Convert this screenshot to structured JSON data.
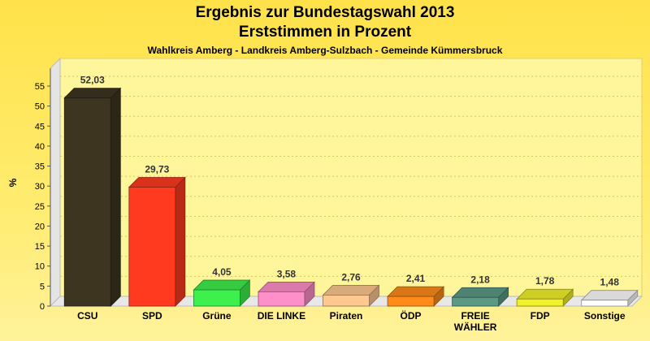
{
  "title_line1": "Ergebnis zur Bundestagswahl 2013",
  "title_line2": "Erststimmen in Prozent",
  "subtitle": "Wahlkreis Amberg - Landkreis Amberg-Sulzbach - Gemeinde Kümmersbruck",
  "chart_data": {
    "type": "bar",
    "title": "Ergebnis zur Bundestagswahl 2013 Erststimmen in Prozent",
    "subtitle": "Wahlkreis Amberg - Landkreis Amberg-Sulzbach - Gemeinde Kümmersbruck",
    "xlabel": "",
    "ylabel": "%",
    "ylim": [
      0,
      55
    ],
    "yticks": [
      0,
      5,
      10,
      15,
      20,
      25,
      30,
      35,
      40,
      45,
      50,
      55
    ],
    "grid": true,
    "categories": [
      "CSU",
      "SPD",
      "Grüne",
      "DIE LINKE",
      "Piraten",
      "ÖDP",
      "FREIE WÄHLER",
      "FDP",
      "Sonstige"
    ],
    "values": [
      52.03,
      29.73,
      4.05,
      3.58,
      2.76,
      2.41,
      2.18,
      1.78,
      1.48
    ],
    "value_labels": [
      "52,03",
      "29,73",
      "4,05",
      "3,58",
      "2,76",
      "2,41",
      "2,18",
      "1,78",
      "1,48"
    ],
    "colors": [
      "#3d3520",
      "#ff3a1e",
      "#3ef04e",
      "#ff8fc8",
      "#ffc890",
      "#ff8c1a",
      "#5a9a84",
      "#f2f22a",
      "#ffffff"
    ]
  }
}
